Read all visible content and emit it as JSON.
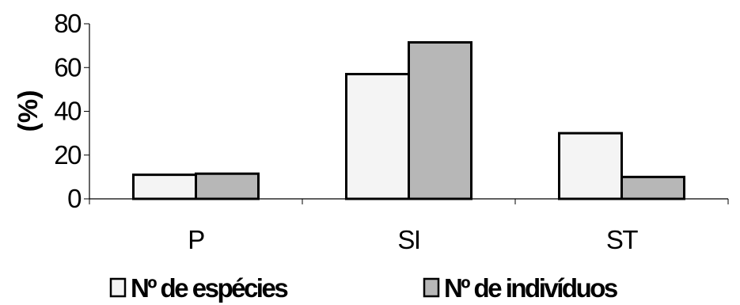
{
  "chart_data": {
    "type": "bar",
    "categories": [
      "P",
      "SI",
      "ST"
    ],
    "series": [
      {
        "name": "Nº de espécies",
        "values": [
          11,
          57,
          30
        ],
        "color": "#f4f4f4"
      },
      {
        "name": "Nº de indivíduos",
        "values": [
          11.5,
          71.5,
          10
        ],
        "color": "#b7b7b7"
      }
    ],
    "title": "",
    "xlabel": "",
    "ylabel": "(%)",
    "ylim": [
      0,
      80
    ],
    "yticks": [
      "0",
      "20",
      "40",
      "60",
      "80"
    ],
    "grid": false,
    "legend_position": "bottom"
  }
}
